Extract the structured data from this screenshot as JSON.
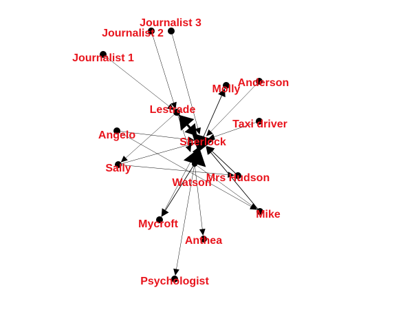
{
  "colors": {
    "label": "#e8141c",
    "node": "#000000",
    "edge": "#000000"
  },
  "nodes": [
    {
      "id": "journalist3",
      "label": "Journalist 3"
    },
    {
      "id": "journalist2",
      "label": "Journalist 2"
    },
    {
      "id": "journalist1",
      "label": "Journalist 1"
    },
    {
      "id": "anderson",
      "label": "Anderson"
    },
    {
      "id": "molly",
      "label": "Molly"
    },
    {
      "id": "lestrade",
      "label": "Lestrade"
    },
    {
      "id": "taxi_driver",
      "label": "Taxi driver"
    },
    {
      "id": "angelo",
      "label": "Angelo"
    },
    {
      "id": "sherlock",
      "label": "Sherlock"
    },
    {
      "id": "sally",
      "label": "Sally"
    },
    {
      "id": "mrs_hudson",
      "label": "Mrs Hudson"
    },
    {
      "id": "watson",
      "label": "Watson"
    },
    {
      "id": "mike",
      "label": "Mike"
    },
    {
      "id": "mycroft",
      "label": "Mycroft"
    },
    {
      "id": "anthea",
      "label": "Anthea"
    },
    {
      "id": "psychologist",
      "label": "Psychologist"
    }
  ],
  "edges": [
    {
      "source": "journalist3",
      "target": "sherlock",
      "weight": 1
    },
    {
      "source": "journalist2",
      "target": "lestrade",
      "weight": 1
    },
    {
      "source": "journalist1",
      "target": "lestrade",
      "weight": 1
    },
    {
      "source": "lestrade",
      "target": "watson",
      "weight": 1
    },
    {
      "source": "lestrade",
      "target": "sally",
      "weight": 1
    },
    {
      "source": "anderson",
      "target": "sherlock",
      "weight": 1
    },
    {
      "source": "sherlock",
      "target": "molly",
      "weight": 2
    },
    {
      "source": "taxi_driver",
      "target": "sherlock",
      "weight": 1
    },
    {
      "source": "angelo",
      "target": "sherlock",
      "weight": 1
    },
    {
      "source": "angelo",
      "target": "mike",
      "weight": 1
    },
    {
      "source": "sally",
      "target": "sherlock",
      "weight": 1
    },
    {
      "source": "sally",
      "target": "mrs_hudson",
      "weight": 1
    },
    {
      "source": "mrs_hudson",
      "target": "sherlock",
      "weight": 2
    },
    {
      "source": "mike",
      "target": "sherlock",
      "weight": 2
    },
    {
      "source": "watson",
      "target": "mike",
      "weight": 1
    },
    {
      "source": "watson",
      "target": "mycroft",
      "weight": 2
    },
    {
      "source": "mycroft",
      "target": "sherlock",
      "weight": 1
    },
    {
      "source": "watson",
      "target": "anthea",
      "weight": 1
    },
    {
      "source": "watson",
      "target": "psychologist",
      "weight": 1
    },
    {
      "source": "sherlock",
      "target": "lestrade",
      "weight": 7
    },
    {
      "source": "lestrade",
      "target": "sherlock",
      "weight": 5
    },
    {
      "source": "watson",
      "target": "sherlock",
      "weight": 10
    },
    {
      "source": "sherlock",
      "target": "watson",
      "weight": 10
    }
  ]
}
